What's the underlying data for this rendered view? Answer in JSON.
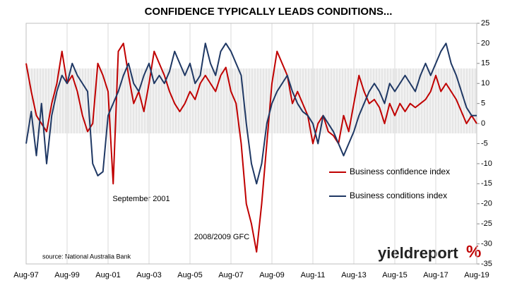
{
  "chart_data": {
    "type": "line",
    "title": "CONFIDENCE TYPICALLY LEADS CONDITIONS...",
    "annotations": [
      "September 2001",
      "2008/2009 GFC"
    ],
    "source": "source: National Australia Bank",
    "logo": "yieldreport",
    "logo_symbol": "%",
    "categories": [
      "Aug-97",
      null,
      null,
      null,
      null,
      null,
      null,
      null,
      "Aug-99",
      null,
      null,
      null,
      null,
      null,
      null,
      null,
      "Aug-01",
      null,
      null,
      null,
      null,
      null,
      null,
      null,
      "Aug-03",
      null,
      null,
      null,
      null,
      null,
      null,
      null,
      "Aug-05",
      null,
      null,
      null,
      null,
      null,
      null,
      null,
      "Aug-07",
      null,
      null,
      null,
      null,
      null,
      null,
      null,
      "Aug-09",
      null,
      null,
      null,
      null,
      null,
      null,
      null,
      "Aug-11",
      null,
      null,
      null,
      null,
      null,
      null,
      null,
      "Aug-13",
      null,
      null,
      null,
      null,
      null,
      null,
      null,
      "Aug-15",
      null,
      null,
      null,
      null,
      null,
      null,
      null,
      "Aug-17",
      null,
      null,
      null,
      null,
      null,
      null,
      null,
      "Aug-19"
    ],
    "series": [
      {
        "name": "Business confidence index",
        "color": "#c00000",
        "values": [
          15,
          8,
          2,
          0,
          -2,
          5,
          10,
          18,
          10,
          12,
          8,
          2,
          -2,
          0,
          15,
          12,
          8,
          -15,
          18,
          20,
          12,
          5,
          8,
          3,
          10,
          18,
          15,
          12,
          8,
          5,
          3,
          5,
          8,
          6,
          10,
          12,
          10,
          8,
          12,
          14,
          8,
          5,
          -5,
          -20,
          -25,
          -32,
          -20,
          -5,
          10,
          18,
          15,
          12,
          5,
          8,
          5,
          2,
          -5,
          0,
          2,
          -2,
          -3,
          -5,
          2,
          -2,
          5,
          12,
          8,
          5,
          6,
          4,
          0,
          5,
          2,
          5,
          3,
          5,
          4,
          5,
          6,
          8,
          12,
          8,
          10,
          8,
          6,
          3,
          0,
          2,
          0
        ]
      },
      {
        "name": "Business conditions index",
        "color": "#1f3864",
        "values": [
          -5,
          3,
          -8,
          5,
          -10,
          2,
          8,
          12,
          10,
          15,
          12,
          10,
          8,
          -10,
          -13,
          -12,
          2,
          5,
          8,
          12,
          15,
          10,
          8,
          12,
          15,
          10,
          12,
          10,
          13,
          18,
          15,
          12,
          15,
          10,
          12,
          20,
          15,
          12,
          18,
          20,
          18,
          15,
          12,
          0,
          -10,
          -15,
          -10,
          0,
          5,
          8,
          10,
          12,
          8,
          5,
          3,
          2,
          0,
          -5,
          2,
          0,
          -2,
          -5,
          -8,
          -5,
          -2,
          2,
          5,
          8,
          10,
          8,
          5,
          10,
          8,
          10,
          12,
          10,
          8,
          12,
          15,
          12,
          15,
          18,
          20,
          15,
          12,
          8,
          4,
          2,
          2
        ]
      }
    ],
    "ylim": [
      -35,
      25
    ],
    "yticks": [
      -35,
      -30,
      -25,
      -20,
      -15,
      -10,
      -5,
      0,
      5,
      10,
      15,
      20,
      25
    ],
    "grid": "x"
  }
}
